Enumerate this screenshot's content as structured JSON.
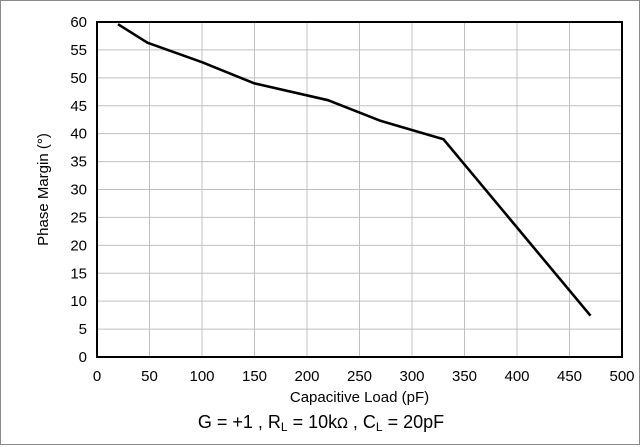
{
  "chart_data": {
    "type": "line",
    "xlabel": "Capacitive Load (pF)",
    "ylabel": "Phase Margin (°)",
    "xlim": [
      0,
      500
    ],
    "ylim": [
      0,
      60
    ],
    "xticks": [
      0,
      50,
      100,
      150,
      200,
      250,
      300,
      350,
      400,
      450,
      500
    ],
    "yticks": [
      0,
      5,
      10,
      15,
      20,
      25,
      30,
      35,
      40,
      45,
      50,
      55,
      60
    ],
    "grid": true,
    "series": [
      {
        "x": [
          20,
          48,
          100,
          150,
          220,
          270,
          330,
          470
        ],
        "y": [
          59.6,
          56.3,
          52.8,
          49,
          46,
          42.3,
          39,
          7.4
        ]
      }
    ],
    "line_color": "#000000",
    "grid_color": "#c0c0c0"
  },
  "conditions": {
    "gain_prefix": "G = +1  , R",
    "rl_sub": "L",
    "rl_value": " = 10k",
    "ohm": "Ω",
    "sep": "  , C",
    "cl_sub": "L",
    "cl_value": " = 20pF"
  }
}
